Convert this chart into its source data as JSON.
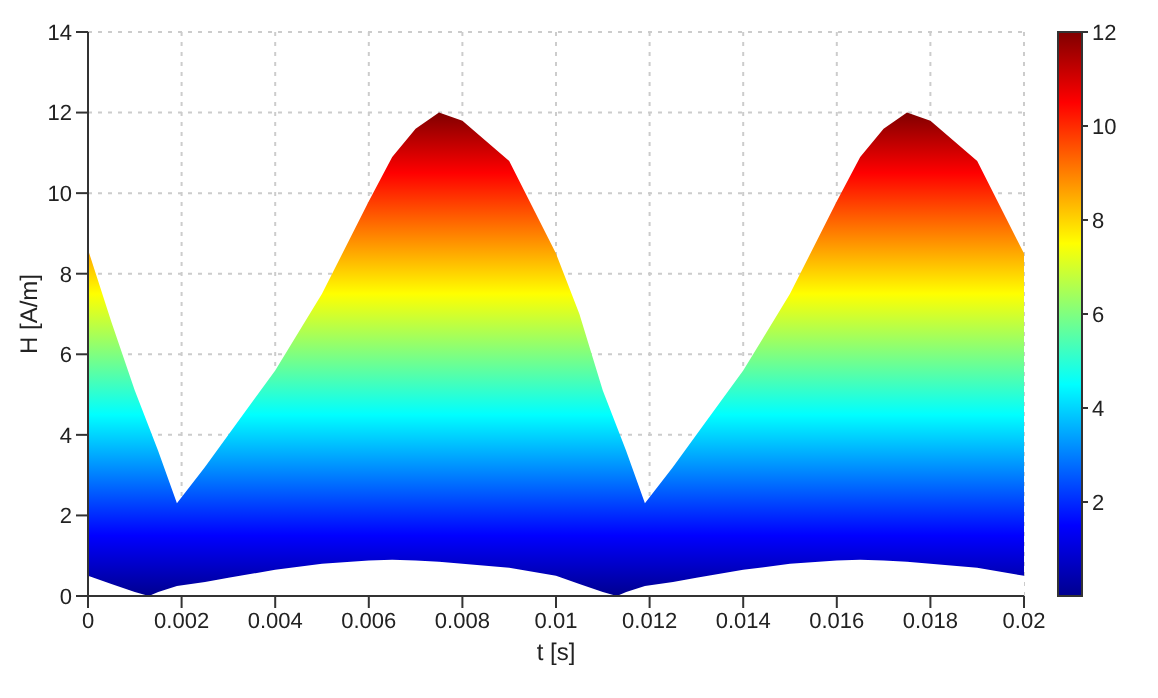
{
  "chart_data": {
    "type": "area",
    "xlabel": "t [s]",
    "ylabel": "H [A/m]",
    "x": [
      0,
      0.0005,
      0.001,
      0.0013,
      0.0015,
      0.0019,
      0.0025,
      0.003,
      0.004,
      0.005,
      0.006,
      0.0065,
      0.007,
      0.0075,
      0.008,
      0.009,
      0.01,
      0.0105,
      0.011,
      0.0113,
      0.0115,
      0.0119,
      0.0125,
      0.013,
      0.014,
      0.015,
      0.016,
      0.0165,
      0.017,
      0.0175,
      0.018,
      0.019,
      0.02
    ],
    "series": [
      {
        "values": [
          8.6,
          6.8,
          5.1,
          4.2,
          3.6,
          2.3,
          3.2,
          4.0,
          5.6,
          7.5,
          9.8,
          10.9,
          11.6,
          12.0,
          11.8,
          10.8,
          8.5,
          7.0,
          5.1,
          4.2,
          3.6,
          2.3,
          3.2,
          4.0,
          5.6,
          7.5,
          9.8,
          10.9,
          11.6,
          12.0,
          11.8,
          10.8,
          8.5
        ]
      },
      {
        "color": "#ffffff",
        "values": [
          0.5,
          0.3,
          0.1,
          0,
          0.1,
          0.25,
          0.35,
          0.45,
          0.65,
          0.8,
          0.88,
          0.9,
          0.88,
          0.85,
          0.8,
          0.7,
          0.5,
          0.3,
          0.1,
          0,
          0.1,
          0.25,
          0.35,
          0.45,
          0.65,
          0.8,
          0.88,
          0.9,
          0.88,
          0.85,
          0.8,
          0.7,
          0.5
        ]
      }
    ],
    "xlim": [
      0,
      0.02
    ],
    "xticks": [
      0,
      0.002,
      0.004,
      0.006,
      0.008,
      0.01,
      0.012,
      0.014,
      0.016,
      0.018,
      0.02
    ],
    "ylim": [
      0,
      14
    ],
    "yticks": [
      0,
      2,
      4,
      6,
      8,
      10,
      12,
      14
    ],
    "clim": [
      0,
      12
    ],
    "cticks": [
      2,
      4,
      6,
      8,
      10,
      12
    ],
    "grid": true
  }
}
